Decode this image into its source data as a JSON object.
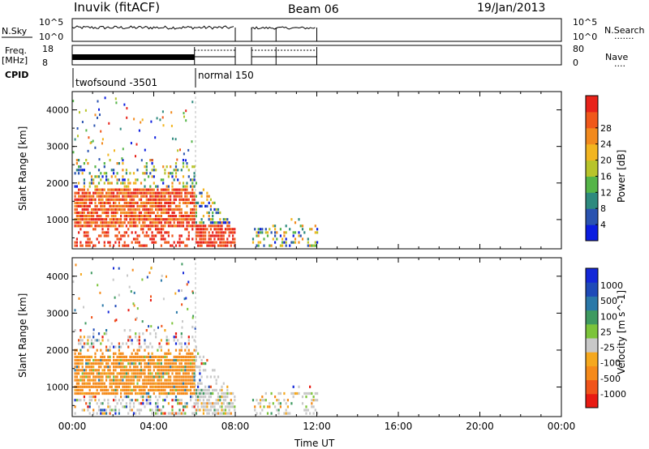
{
  "header": {
    "station": "Inuvik (fitACF)",
    "beam": "Beam 06",
    "date": "19/Jan/2013"
  },
  "panels": {
    "nsky": {
      "left_label": "N.Sky",
      "left_ticks": [
        "10^5",
        "10^0"
      ],
      "right_ticks": [
        "10^5",
        "10^0"
      ],
      "right_label": "N.Search",
      "right_key": "......."
    },
    "freq": {
      "left_label_1": "Freq.",
      "left_label_2": "[MHz]",
      "left_ticks": [
        "18",
        "8"
      ],
      "right_ticks": [
        "80",
        "0"
      ],
      "right_label": "Nave",
      "right_key": "....",
      "cpid_label": "CPID"
    },
    "cpid": {
      "modes": [
        {
          "name": "twofsound",
          "id": "-3501",
          "start_hour": 0,
          "end_hour": 6
        },
        {
          "name": "normal",
          "id": "150",
          "start_hour": 6,
          "end_hour": 24
        }
      ]
    }
  },
  "colors": {
    "power_scale": [
      "#0b1de0",
      "#2a53b0",
      "#2e8a7e",
      "#55b548",
      "#b8c42a",
      "#f2b520",
      "#f28a1e",
      "#f0581a",
      "#e8231a"
    ],
    "velocity_scale": [
      "#e81a12",
      "#f0541a",
      "#f58a1a",
      "#f5a81e",
      "#c8c8c8",
      "#7cc43a",
      "#3f9a60",
      "#2a78a8",
      "#1e4ab8",
      "#1428d8"
    ]
  },
  "chart_data": [
    {
      "type": "heatmap",
      "title": "Power",
      "xlabel": "",
      "ylabel": "Slant Range [km]",
      "y_ticks": [
        "1000",
        "2000",
        "3000",
        "4000"
      ],
      "ylim": [
        200,
        4500
      ],
      "colorbar_label": "Power [dB]",
      "colorbar_ticks": [
        "4",
        "8",
        "12",
        "16",
        "20",
        "24",
        "28"
      ],
      "colorbar_range": [
        0,
        32
      ]
    },
    {
      "type": "heatmap",
      "title": "Velocity",
      "xlabel": "Time UT",
      "ylabel": "Slant Range [km]",
      "y_ticks": [
        "1000",
        "2000",
        "3000",
        "4000"
      ],
      "ylim": [
        200,
        4500
      ],
      "x_ticks": [
        "00:00",
        "04:00",
        "08:00",
        "12:00",
        "16:00",
        "20:00",
        "00:00"
      ],
      "xlim_hours": [
        0,
        24
      ],
      "colorbar_label": "Velocity [m s^-1]",
      "colorbar_ticks": [
        "1000",
        "500",
        "100",
        "25",
        "-25",
        "-100",
        "-500",
        "-1000"
      ]
    }
  ]
}
